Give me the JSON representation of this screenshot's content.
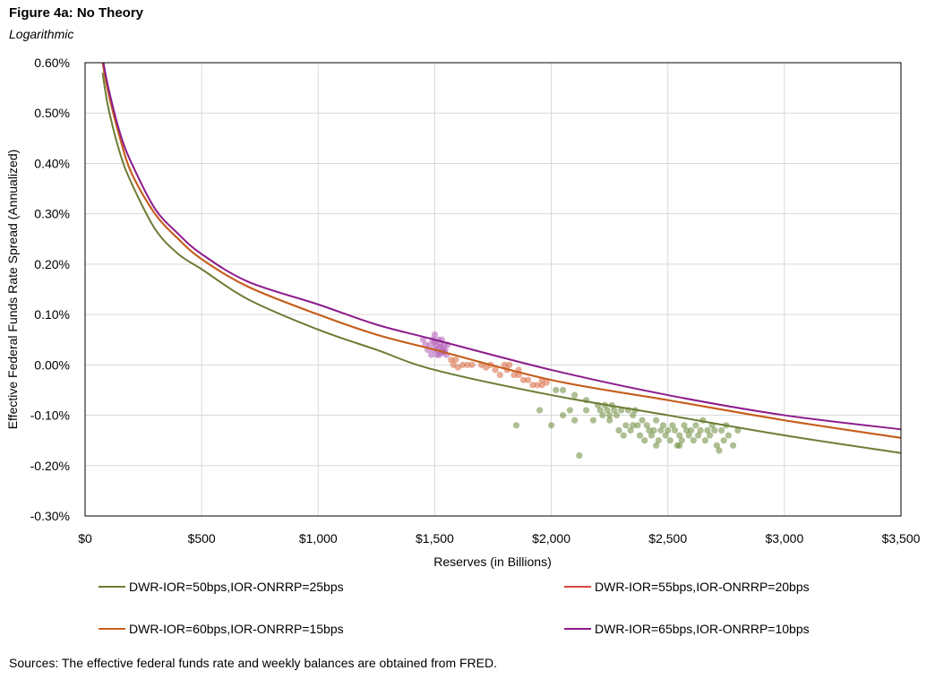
{
  "figure": {
    "title": "Figure 4a: No Theory",
    "subtitle": "Logarithmic",
    "source": "Sources: The effective federal funds rate and weekly balances are obtained from FRED."
  },
  "chart_data": {
    "type": "line",
    "title": "Figure 4a: No Theory",
    "subtitle": "Logarithmic",
    "xlabel": "Reserves (in Billions)",
    "ylabel": "Effective Federal Funds Rate Spread (Annualized)",
    "xlim": [
      0,
      3500
    ],
    "ylim": [
      -0.3,
      0.6
    ],
    "x_ticks": [
      0,
      500,
      1000,
      1500,
      2000,
      2500,
      3000,
      3500
    ],
    "x_tick_labels": [
      "$0",
      "$500",
      "$1,000",
      "$1,500",
      "$2,000",
      "$2,500",
      "$3,000",
      "$3,500"
    ],
    "y_ticks": [
      -0.3,
      -0.2,
      -0.1,
      0.0,
      0.1,
      0.2,
      0.3,
      0.4,
      0.5,
      0.6
    ],
    "y_tick_labels": [
      "-0.30%",
      "-0.20%",
      "-0.10%",
      "0.00%",
      "0.10%",
      "0.20%",
      "0.30%",
      "0.40%",
      "0.50%",
      "0.60%"
    ],
    "grid": true,
    "legend_position": "bottom",
    "series": [
      {
        "name": "DWR-IOR=50bps,IOR-ONRRP=25bps",
        "color": "#6b7d35",
        "x": [
          75,
          100,
          150,
          200,
          300,
          400,
          500,
          700,
          1000,
          1250,
          1500,
          2000,
          2500,
          3000,
          3500
        ],
        "values": [
          0.58,
          0.51,
          0.42,
          0.36,
          0.27,
          0.22,
          0.19,
          0.13,
          0.07,
          0.03,
          -0.01,
          -0.06,
          -0.1,
          -0.14,
          -0.175
        ]
      },
      {
        "name": "DWR-IOR=55bps,IOR-ONRRP=20bps",
        "color": "#d9473e",
        "x": [
          75,
          100,
          150,
          200,
          300,
          400,
          500,
          700,
          1000,
          1250,
          1500,
          2000,
          2500,
          3000,
          3500
        ],
        "values": [
          0.6,
          0.54,
          0.45,
          0.38,
          0.3,
          0.25,
          0.21,
          0.155,
          0.1,
          0.06,
          0.03,
          -0.03,
          -0.07,
          -0.11,
          -0.145
        ]
      },
      {
        "name": "DWR-IOR=60bps,IOR-ONRRP=15bps",
        "color": "#c4601a",
        "x": [
          75,
          100,
          150,
          200,
          300,
          400,
          500,
          700,
          1000,
          1250,
          1500,
          2000,
          2500,
          3000,
          3500
        ],
        "values": [
          0.6,
          0.54,
          0.45,
          0.38,
          0.3,
          0.25,
          0.21,
          0.155,
          0.1,
          0.06,
          0.03,
          -0.03,
          -0.07,
          -0.11,
          -0.145
        ]
      },
      {
        "name": "DWR-IOR=65bps,IOR-ONRRP=10bps",
        "color": "#8c1c8c",
        "x": [
          75,
          100,
          150,
          200,
          300,
          400,
          500,
          700,
          1000,
          1250,
          1500,
          2000,
          2500,
          3000,
          3500
        ],
        "values": [
          0.61,
          0.55,
          0.46,
          0.4,
          0.31,
          0.26,
          0.22,
          0.165,
          0.12,
          0.08,
          0.05,
          -0.01,
          -0.06,
          -0.1,
          -0.128
        ]
      }
    ],
    "scatter": [
      {
        "name": "purple-observations",
        "color": "#b15cb8",
        "points": [
          [
            1450,
            0.05
          ],
          [
            1460,
            0.04
          ],
          [
            1470,
            0.03
          ],
          [
            1480,
            0.04
          ],
          [
            1490,
            0.05
          ],
          [
            1495,
            0.03
          ],
          [
            1500,
            0.06
          ],
          [
            1505,
            0.04
          ],
          [
            1510,
            0.03
          ],
          [
            1515,
            0.05
          ],
          [
            1520,
            0.02
          ],
          [
            1525,
            0.04
          ],
          [
            1530,
            0.05
          ],
          [
            1535,
            0.03
          ],
          [
            1540,
            0.04
          ],
          [
            1545,
            0.03
          ],
          [
            1550,
            0.02
          ],
          [
            1555,
            0.04
          ],
          [
            1485,
            0.02
          ],
          [
            1510,
            0.02
          ],
          [
            1530,
            0.025
          ],
          [
            1500,
            0.045
          ],
          [
            1520,
            0.035
          ],
          [
            1540,
            0.025
          ]
        ]
      },
      {
        "name": "red-observations",
        "color": "#d9673e",
        "points": [
          [
            1570,
            0.01
          ],
          [
            1580,
            0.0
          ],
          [
            1590,
            0.01
          ],
          [
            1600,
            -0.005
          ],
          [
            1620,
            0.0
          ],
          [
            1640,
            0.0
          ],
          [
            1660,
            0.0
          ],
          [
            1700,
            0.0
          ],
          [
            1720,
            -0.005
          ],
          [
            1740,
            0.0
          ],
          [
            1760,
            -0.01
          ],
          [
            1780,
            -0.02
          ],
          [
            1800,
            0.0
          ],
          [
            1810,
            -0.01
          ],
          [
            1820,
            0.0
          ],
          [
            1840,
            -0.02
          ],
          [
            1860,
            -0.02
          ],
          [
            1880,
            -0.03
          ],
          [
            1900,
            -0.03
          ],
          [
            1920,
            -0.04
          ],
          [
            1940,
            -0.04
          ],
          [
            1960,
            -0.04
          ],
          [
            1980,
            -0.035
          ],
          [
            1960,
            -0.03
          ],
          [
            1860,
            -0.01
          ]
        ]
      },
      {
        "name": "green-observations",
        "color": "#6b8a3a",
        "points": [
          [
            1850,
            -0.12
          ],
          [
            1950,
            -0.09
          ],
          [
            2000,
            -0.12
          ],
          [
            2050,
            -0.1
          ],
          [
            2080,
            -0.09
          ],
          [
            2100,
            -0.11
          ],
          [
            2120,
            -0.18
          ],
          [
            2150,
            -0.09
          ],
          [
            2180,
            -0.11
          ],
          [
            2200,
            -0.08
          ],
          [
            2210,
            -0.09
          ],
          [
            2220,
            -0.1
          ],
          [
            2230,
            -0.08
          ],
          [
            2240,
            -0.09
          ],
          [
            2250,
            -0.11
          ],
          [
            2260,
            -0.08
          ],
          [
            2270,
            -0.09
          ],
          [
            2280,
            -0.1
          ],
          [
            2290,
            -0.13
          ],
          [
            2300,
            -0.09
          ],
          [
            2310,
            -0.14
          ],
          [
            2320,
            -0.12
          ],
          [
            2330,
            -0.09
          ],
          [
            2340,
            -0.13
          ],
          [
            2350,
            -0.1
          ],
          [
            2360,
            -0.09
          ],
          [
            2370,
            -0.12
          ],
          [
            2380,
            -0.14
          ],
          [
            2390,
            -0.11
          ],
          [
            2400,
            -0.15
          ],
          [
            2410,
            -0.12
          ],
          [
            2420,
            -0.13
          ],
          [
            2430,
            -0.14
          ],
          [
            2440,
            -0.13
          ],
          [
            2450,
            -0.11
          ],
          [
            2460,
            -0.15
          ],
          [
            2470,
            -0.13
          ],
          [
            2480,
            -0.12
          ],
          [
            2490,
            -0.14
          ],
          [
            2500,
            -0.13
          ],
          [
            2510,
            -0.15
          ],
          [
            2520,
            -0.12
          ],
          [
            2530,
            -0.13
          ],
          [
            2540,
            -0.16
          ],
          [
            2550,
            -0.14
          ],
          [
            2560,
            -0.15
          ],
          [
            2570,
            -0.12
          ],
          [
            2580,
            -0.13
          ],
          [
            2590,
            -0.14
          ],
          [
            2600,
            -0.13
          ],
          [
            2610,
            -0.15
          ],
          [
            2620,
            -0.12
          ],
          [
            2630,
            -0.14
          ],
          [
            2640,
            -0.13
          ],
          [
            2650,
            -0.11
          ],
          [
            2660,
            -0.15
          ],
          [
            2670,
            -0.13
          ],
          [
            2680,
            -0.14
          ],
          [
            2690,
            -0.12
          ],
          [
            2700,
            -0.13
          ],
          [
            2710,
            -0.16
          ],
          [
            2720,
            -0.17
          ],
          [
            2730,
            -0.13
          ],
          [
            2740,
            -0.15
          ],
          [
            2750,
            -0.12
          ],
          [
            2760,
            -0.14
          ],
          [
            2780,
            -0.16
          ],
          [
            2800,
            -0.13
          ],
          [
            2020,
            -0.05
          ],
          [
            2050,
            -0.05
          ],
          [
            2100,
            -0.06
          ],
          [
            2150,
            -0.07
          ],
          [
            2250,
            -0.1
          ],
          [
            2350,
            -0.12
          ],
          [
            2450,
            -0.16
          ],
          [
            2550,
            -0.16
          ]
        ]
      }
    ]
  }
}
